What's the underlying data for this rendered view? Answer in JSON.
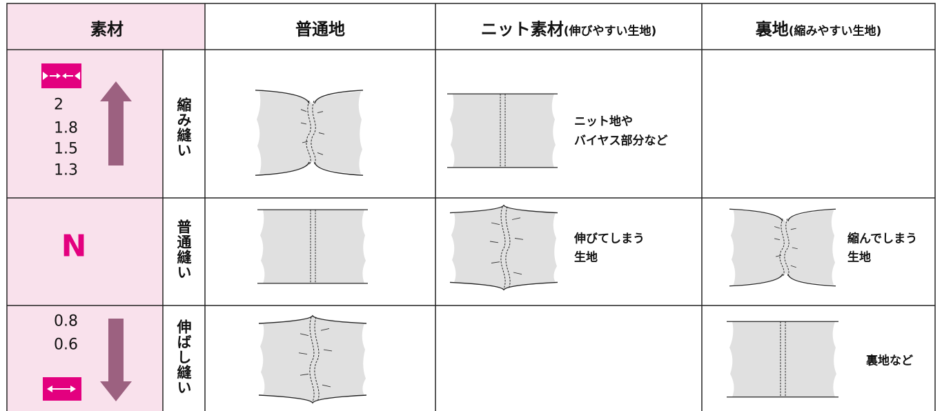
{
  "header": {
    "material": "素材",
    "normal": "普通地",
    "knit": "ニット素材",
    "knit_note": "(伸びやすい生地)",
    "lining": "裏地",
    "lining_note": "(縮みやすい生地)"
  },
  "rows": [
    {
      "settings": [
        "2",
        "1.8",
        "1.5",
        "1.3"
      ],
      "label": "縮み縫い",
      "knit_note": [
        "ニット地や",
        "バイヤス部分など"
      ]
    },
    {
      "settings": [
        "N"
      ],
      "label": "普通縫い",
      "knit_note": [
        "伸びてしまう",
        "生地"
      ],
      "lining_note": [
        "縮んでしまう",
        "生地"
      ]
    },
    {
      "settings": [
        "0.8",
        "0.6"
      ],
      "label": "伸ばし縫い",
      "lining_note": [
        "裏地など"
      ]
    }
  ]
}
